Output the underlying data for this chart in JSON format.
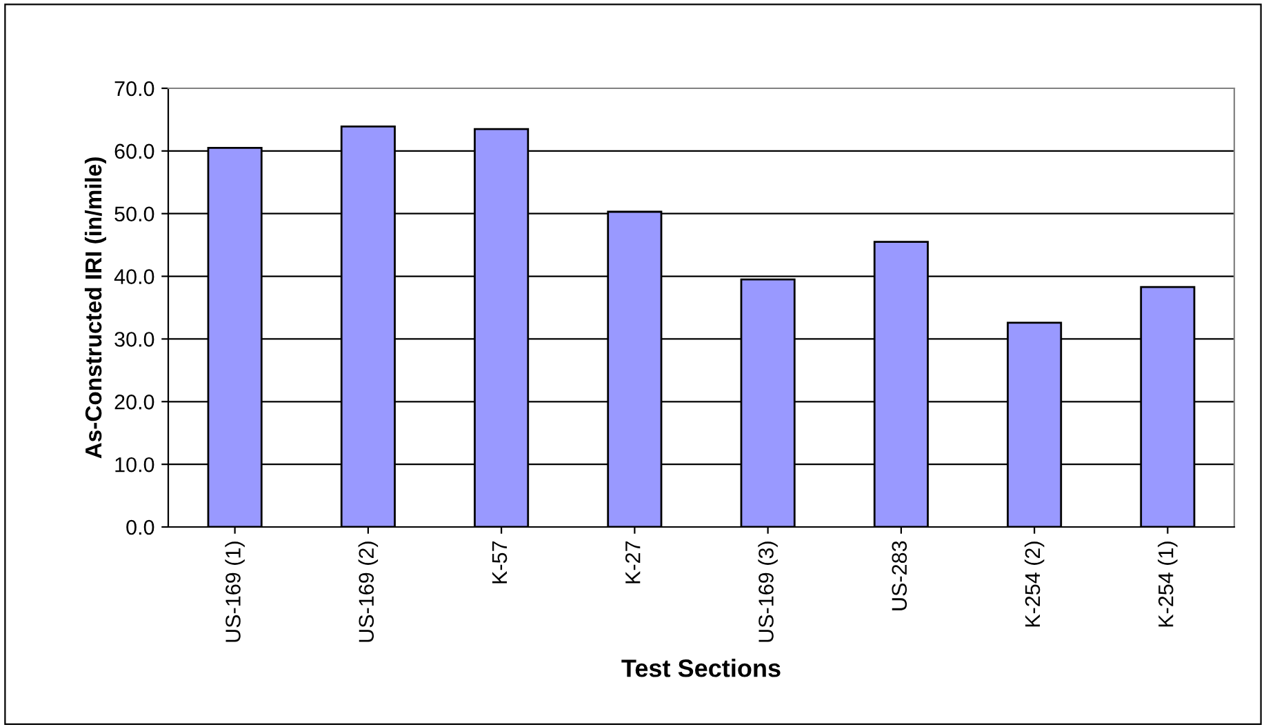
{
  "chart_data": {
    "type": "bar",
    "xlabel": "Test Sections",
    "ylabel": "As-Constructed IRI (in/mile)",
    "categories": [
      "US-169 (1)",
      "US-169 (2)",
      "K-57",
      "K-27",
      "US-169 (3)",
      "US-283",
      "K-254 (2)",
      "K-254 (1)"
    ],
    "values": [
      60.5,
      63.9,
      63.5,
      50.3,
      39.5,
      45.5,
      32.6,
      38.3
    ],
    "color": "#9999ff",
    "ylim": [
      0,
      70
    ],
    "yticks": [
      {
        "value": 0,
        "label": "0.0"
      },
      {
        "value": 10,
        "label": "10.0"
      },
      {
        "value": 20,
        "label": "20.0"
      },
      {
        "value": 30,
        "label": "30.0"
      },
      {
        "value": 40,
        "label": "40.0"
      },
      {
        "value": 50,
        "label": "50.0"
      },
      {
        "value": 60,
        "label": "60.0"
      },
      {
        "value": 70,
        "label": "70.0"
      }
    ],
    "grid": "y"
  }
}
